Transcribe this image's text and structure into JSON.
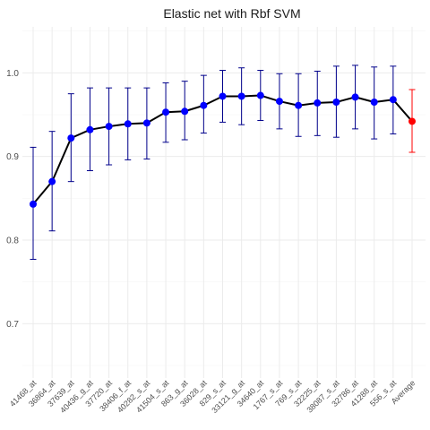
{
  "chart_data": {
    "type": "line",
    "title": "Elastic net with Rbf SVM",
    "xlabel": "",
    "ylabel": "",
    "ylim": [
      0.635,
      1.055
    ],
    "yticks": [
      0.7,
      0.8,
      0.9,
      1.0
    ],
    "ytick_labels": [
      "0.7",
      "0.8",
      "0.9",
      "1.0"
    ],
    "grid": true,
    "categories": [
      "41468_at",
      "36864_at",
      "37639_at",
      "40436_g_at",
      "37720_at",
      "38406_f_at",
      "40282_s_at",
      "41504_s_at",
      "863_g_at",
      "36028_at",
      "829_s_at",
      "33121_g_at",
      "34640_at",
      "1767_s_at",
      "769_s_at",
      "32225_at",
      "38087_s_at",
      "32786_at",
      "41288_at",
      "556_s_at",
      "Average"
    ],
    "series": [
      {
        "values": [
          0.843,
          0.87,
          0.922,
          0.932,
          0.936,
          0.939,
          0.94,
          0.953,
          0.954,
          0.961,
          0.972,
          0.972,
          0.973,
          0.966,
          0.961,
          0.964,
          0.965,
          0.971,
          0.965,
          0.968,
          0.942
        ],
        "lower": [
          0.777,
          0.811,
          0.87,
          0.883,
          0.89,
          0.896,
          0.897,
          0.917,
          0.92,
          0.928,
          0.941,
          0.938,
          0.943,
          0.933,
          0.924,
          0.925,
          0.923,
          0.933,
          0.921,
          0.927,
          0.905
        ],
        "upper": [
          0.911,
          0.93,
          0.975,
          0.982,
          0.982,
          0.982,
          0.982,
          0.988,
          0.99,
          0.997,
          1.003,
          1.006,
          1.003,
          0.999,
          0.999,
          1.002,
          1.008,
          1.009,
          1.007,
          1.008,
          0.98
        ]
      }
    ],
    "colors": {
      "line": "#000000",
      "point": "#0000ff",
      "errorbar": "#00008b",
      "average_point": "#ff0000",
      "average_errorbar": "#ff0000"
    }
  }
}
